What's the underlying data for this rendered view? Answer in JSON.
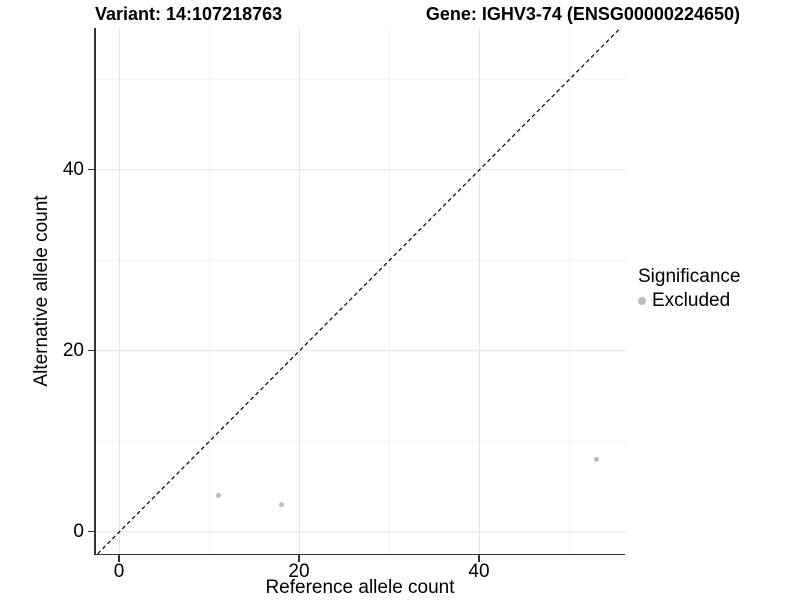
{
  "chart_data": {
    "type": "scatter",
    "title_left": "Variant: 14:107218763",
    "title_right": "Gene: IGHV3-74 (ENSG00000224650)",
    "xlabel": "Reference allele count",
    "ylabel": "Alternative allele count",
    "xlim": [
      -2.61,
      56.28
    ],
    "ylim": [
      -2.43,
      55.64
    ],
    "x_ticks": [
      0,
      20,
      40
    ],
    "y_ticks": [
      0,
      20,
      40
    ],
    "x_minor_ticks": [
      10,
      30,
      50
    ],
    "y_minor_ticks": [
      10,
      30,
      50
    ],
    "grid": true,
    "identity_line": {
      "slope": 1,
      "intercept": 0,
      "style": "dashed",
      "color": "#000000"
    },
    "series": [
      {
        "name": "Excluded",
        "color": "#bdbdbd",
        "point_radius": 2.5,
        "points": [
          {
            "x": 11,
            "y": 4
          },
          {
            "x": 18,
            "y": 3
          },
          {
            "x": 53,
            "y": 8
          }
        ]
      }
    ],
    "legend": {
      "title": "Significance",
      "position": "right",
      "items": [
        {
          "label": "Excluded",
          "color": "#bdbdbd"
        }
      ]
    }
  },
  "colors": {
    "background": "#ffffff",
    "axis_line": "#333333",
    "tick_mark": "#333333",
    "grid_major": "#e4e4e4",
    "grid_minor": "#f1f1f1",
    "text": "#000000"
  }
}
